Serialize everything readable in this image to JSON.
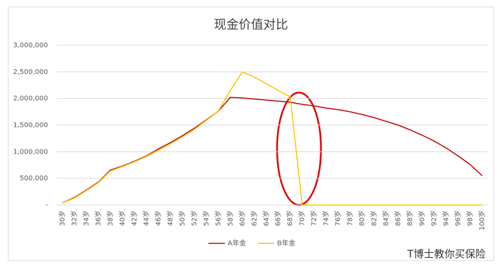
{
  "chart_data": {
    "type": "line",
    "title": "现金价值对比",
    "categories": [
      "30岁",
      "32岁",
      "34岁",
      "36岁",
      "38岁",
      "40岁",
      "42岁",
      "44岁",
      "46岁",
      "48岁",
      "50岁",
      "52岁",
      "54岁",
      "56岁",
      "58岁",
      "60岁",
      "62岁",
      "64岁",
      "66岁",
      "68岁",
      "70岁",
      "72岁",
      "74岁",
      "76岁",
      "78岁",
      "80岁",
      "82岁",
      "84岁",
      "86岁",
      "88岁",
      "90岁",
      "92岁",
      "94岁",
      "96岁",
      "98岁",
      "100岁"
    ],
    "series": [
      {
        "name": "A年金",
        "color": "#c00000",
        "values": [
          40000,
          140000,
          280000,
          430000,
          656000,
          730000,
          820000,
          920000,
          1050000,
          1170000,
          1300000,
          1440000,
          1600000,
          1760000,
          2020000,
          2010000,
          1990000,
          1970000,
          1950000,
          1930000,
          1890000,
          1860000,
          1820000,
          1790000,
          1750000,
          1700000,
          1640000,
          1570000,
          1500000,
          1410000,
          1310000,
          1200000,
          1070000,
          920000,
          760000,
          550000
        ]
      },
      {
        "name": "B年金",
        "color": "#ffc000",
        "values": [
          40000,
          130000,
          270000,
          420000,
          640000,
          720000,
          810000,
          910000,
          1030000,
          1150000,
          1280000,
          1420000,
          1590000,
          1760000,
          2150000,
          2500000,
          2400000,
          2280000,
          2150000,
          2030000,
          0,
          0,
          0,
          0,
          0,
          0,
          0,
          0,
          0,
          0,
          0,
          0,
          0,
          0,
          0,
          0
        ]
      }
    ],
    "ylim": [
      0,
      3000000
    ],
    "yticks": [
      {
        "value": 0,
        "label": "-"
      },
      {
        "value": 500000,
        "label": "500,000"
      },
      {
        "value": 1000000,
        "label": "1,000,000"
      },
      {
        "value": 1500000,
        "label": "1,500,000"
      },
      {
        "value": 2000000,
        "label": "2,000,000"
      },
      {
        "value": 2500000,
        "label": "2,500,000"
      },
      {
        "value": 3000000,
        "label": "3,000,000"
      }
    ],
    "grid": true,
    "legend": "bottom"
  },
  "watermark": "T博士教你买保险"
}
